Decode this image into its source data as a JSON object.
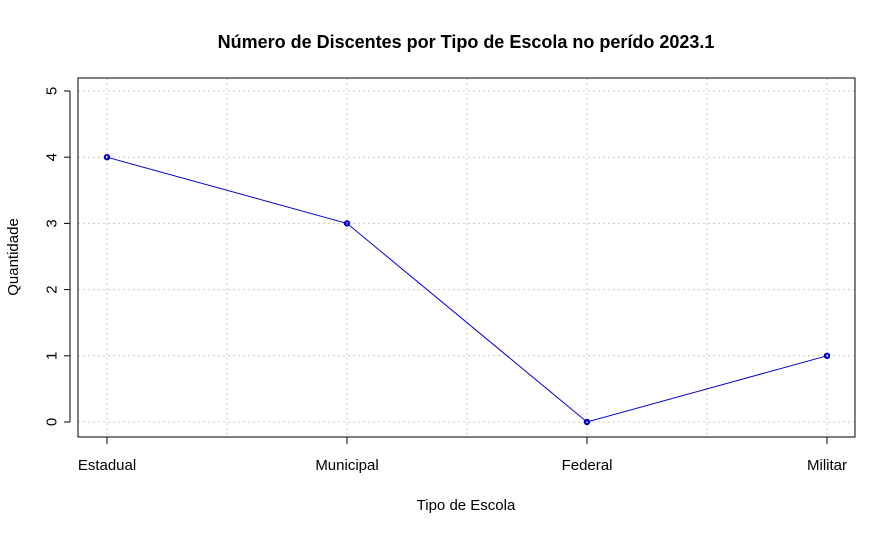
{
  "chart_data": {
    "type": "line",
    "title": "Número de Discentes por Tipo de Escola no perído 2023.1",
    "xlabel": "Tipo de Escola",
    "ylabel": "Quantidade",
    "categories": [
      "Estadual",
      "Municipal",
      "Federal",
      "Militar"
    ],
    "series": [
      {
        "values": [
          4,
          3,
          0,
          1
        ],
        "color": "#0000cc"
      }
    ],
    "yticks": [
      0,
      1,
      2,
      3,
      4,
      5
    ],
    "ylim": [
      0,
      5
    ],
    "grid": true,
    "marker": "open-circle"
  }
}
